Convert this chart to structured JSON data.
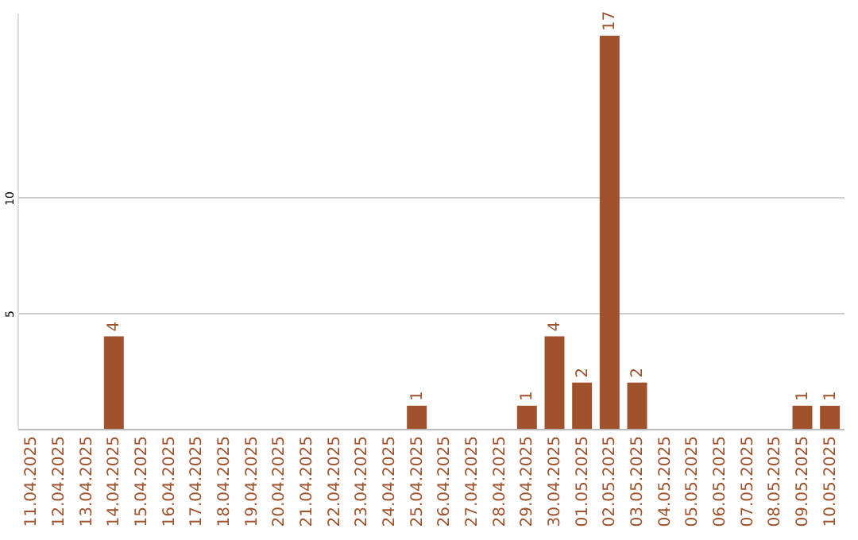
{
  "chart_data": {
    "type": "bar",
    "categories": [
      "11.04.2025",
      "12.04.2025",
      "13.04.2025",
      "14.04.2025",
      "15.04.2025",
      "16.04.2025",
      "17.04.2025",
      "18.04.2025",
      "19.04.2025",
      "20.04.2025",
      "21.04.2025",
      "22.04.2025",
      "23.04.2025",
      "24.04.2025",
      "25.04.2025",
      "26.04.2025",
      "27.04.2025",
      "28.04.2025",
      "29.04.2025",
      "30.04.2025",
      "01.05.2025",
      "02.05.2025",
      "03.05.2025",
      "04.05.2025",
      "05.05.2025",
      "06.05.2025",
      "07.05.2025",
      "08.05.2025",
      "09.05.2025",
      "10.05.2025"
    ],
    "values": [
      0,
      0,
      0,
      4,
      0,
      0,
      0,
      0,
      0,
      0,
      0,
      0,
      0,
      0,
      1,
      0,
      0,
      0,
      1,
      4,
      2,
      17,
      2,
      0,
      0,
      0,
      0,
      0,
      1,
      1
    ],
    "value_labels": [
      null,
      null,
      null,
      "4",
      null,
      null,
      null,
      null,
      null,
      null,
      null,
      null,
      null,
      null,
      "1",
      null,
      null,
      null,
      "1",
      "4",
      "2",
      "17",
      "2",
      null,
      null,
      null,
      null,
      null,
      "1",
      "1"
    ],
    "color": "#a0522d",
    "ylim": [
      0,
      18
    ],
    "yticks": [
      5,
      10
    ],
    "grid": "y"
  }
}
